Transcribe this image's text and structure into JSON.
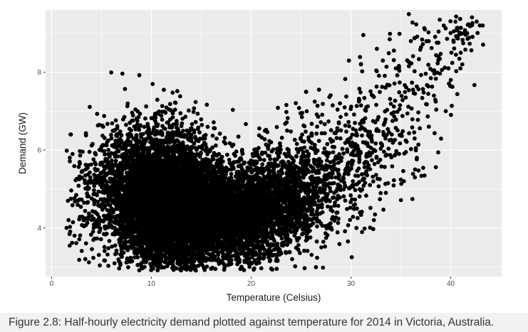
{
  "chart_data": {
    "type": "scatter",
    "title": "",
    "xlabel": "Temperature (Celsius)",
    "ylabel": "Demand (GW)",
    "xlim": [
      -0.6,
      45.1
    ],
    "ylim": [
      2.75,
      9.6
    ],
    "x_ticks": [
      "0",
      "10",
      "20",
      "30",
      "40"
    ],
    "y_ticks": [
      "4",
      "6",
      "8"
    ],
    "grid": true,
    "background": "#ebebeb",
    "point_color": "#000000",
    "clusters": [
      {
        "cx": 11.6,
        "cy": 4.7,
        "sx": 2.7,
        "sy": 0.85,
        "n": 3600
      },
      {
        "cx": 9.0,
        "cy": 5.1,
        "sx": 2.4,
        "sy": 0.85,
        "n": 1100
      },
      {
        "cx": 13.5,
        "cy": 4.3,
        "sx": 3.2,
        "sy": 0.7,
        "n": 1500
      },
      {
        "cx": 17.5,
        "cy": 4.35,
        "sx": 2.8,
        "sy": 0.65,
        "n": 1800
      },
      {
        "cx": 21.5,
        "cy": 4.55,
        "sx": 2.3,
        "sy": 0.65,
        "n": 1000
      },
      {
        "cx": 24.5,
        "cy": 4.95,
        "sx": 2.0,
        "sy": 0.7,
        "n": 500
      },
      {
        "cx": 28.0,
        "cy": 5.5,
        "sx": 2.0,
        "sy": 0.8,
        "n": 280
      },
      {
        "cx": 31.5,
        "cy": 6.1,
        "sx": 1.8,
        "sy": 0.85,
        "n": 170
      },
      {
        "cx": 35.0,
        "cy": 7.0,
        "sx": 1.7,
        "sy": 0.85,
        "n": 110
      },
      {
        "cx": 38.5,
        "cy": 8.2,
        "sx": 1.6,
        "sy": 0.7,
        "n": 70
      },
      {
        "cx": 41.5,
        "cy": 9.0,
        "sx": 1.0,
        "sy": 0.25,
        "n": 45
      },
      {
        "cx": 4.8,
        "cy": 5.0,
        "sx": 1.3,
        "sy": 0.8,
        "n": 120
      },
      {
        "cx": 2.8,
        "cy": 4.6,
        "sx": 0.8,
        "sy": 0.7,
        "n": 35
      }
    ],
    "outliers": [
      [
        1.9,
        6.4
      ],
      [
        2.1,
        5.9
      ],
      [
        1.7,
        4.2
      ],
      [
        1.5,
        4.0
      ],
      [
        2.3,
        3.8
      ],
      [
        7.3,
        6.85
      ],
      [
        8.6,
        6.75
      ],
      [
        12.5,
        6.7
      ],
      [
        22.0,
        6.2
      ],
      [
        23.6,
        6.5
      ],
      [
        25.5,
        7.5
      ],
      [
        26.8,
        7.55
      ],
      [
        28.9,
        7.2
      ],
      [
        29.8,
        8.3
      ],
      [
        31.0,
        8.2
      ],
      [
        32.6,
        8.6
      ],
      [
        33.2,
        8.3
      ],
      [
        34.5,
        8.1
      ],
      [
        36.0,
        8.8
      ],
      [
        37.4,
        9.1
      ],
      [
        38.9,
        9.35
      ],
      [
        39.3,
        9.2
      ],
      [
        40.0,
        7.8
      ],
      [
        37.8,
        6.6
      ],
      [
        36.6,
        5.8
      ],
      [
        36.4,
        5.3
      ],
      [
        32.3,
        4.2
      ],
      [
        33.5,
        4.9
      ],
      [
        30.9,
        4.4
      ],
      [
        27.1,
        4.6
      ],
      [
        35.3,
        5.2
      ],
      [
        42.6,
        9.3
      ],
      [
        43.2,
        9.2
      ],
      [
        41.0,
        8.5
      ],
      [
        39.5,
        7.0
      ],
      [
        16.0,
        2.95
      ],
      [
        14.4,
        2.92
      ],
      [
        12.5,
        2.96
      ]
    ]
  },
  "caption": "Figure 2.8: Half-hourly electricity demand plotted against temperature for 2014 in Victoria, Australia."
}
